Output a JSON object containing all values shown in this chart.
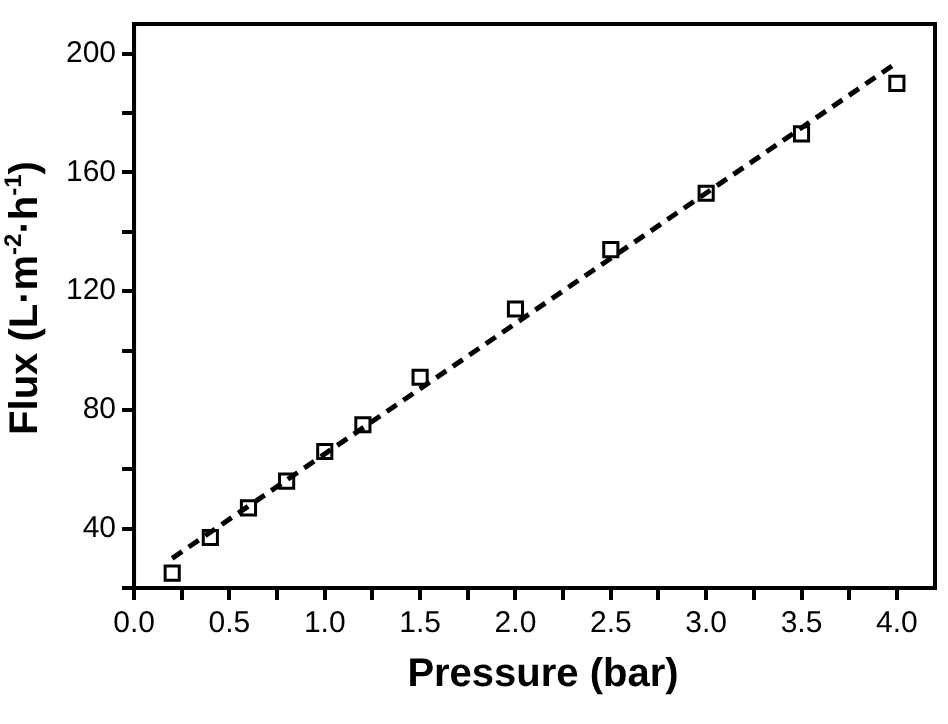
{
  "chart_data": {
    "type": "scatter",
    "xlabel": "Pressure (bar)",
    "ylabel": "Flux (L·m$^{-2}$·h$^{-1}$)",
    "xlim": [
      0,
      4.2
    ],
    "ylim": [
      20,
      210
    ],
    "xticks": [
      "0.0",
      {
        "value": 0.25,
        "label": null
      },
      {
        "value": 0.5,
        "label": "0.5"
      },
      {
        "value": 0.75,
        "label": null
      },
      {
        "value": 1,
        "label": "1.0"
      },
      {
        "value": 1.25,
        "label": null
      },
      {
        "value": 1.5,
        "label": "1.5"
      },
      {
        "value": 1.75,
        "label": null
      },
      {
        "value": 2,
        "label": "2.0"
      },
      {
        "value": 2.25,
        "label": null
      },
      {
        "value": 2.5,
        "label": "2.5"
      },
      {
        "value": 2.75,
        "label": null
      },
      {
        "value": 3,
        "label": "3.0"
      },
      {
        "value": 3.25,
        "label": null
      },
      {
        "value": 3.5,
        "label": "3.5"
      },
      {
        "value": 3.75,
        "label": null
      },
      {
        "value": 4,
        "label": "4.0"
      }
    ],
    "yticks": [
      {
        "value": 20,
        "label": null
      },
      40,
      {
        "value": 60,
        "label": null
      },
      80,
      {
        "value": 100,
        "label": null
      },
      120,
      {
        "value": 140,
        "label": null
      },
      160,
      {
        "value": 180,
        "label": null
      },
      200
    ],
    "grid": false,
    "legend": false,
    "series": [
      {
        "color": "#000000",
        "marker": "square",
        "x": [
          0.2,
          0.4,
          0.6,
          0.8,
          1.0,
          1.2,
          1.5,
          2.0,
          2.5,
          3.0,
          3.5,
          4.0
        ],
        "values": [
          25,
          37,
          47,
          56,
          66,
          75,
          91,
          114,
          134,
          153,
          173,
          190
        ]
      },
      {
        "type": "line",
        "color": "#000000",
        "marker": "none",
        "line_style": "dashed",
        "x": [
          0.2,
          4.0
        ],
        "values": [
          30,
          197
        ]
      }
    ]
  }
}
